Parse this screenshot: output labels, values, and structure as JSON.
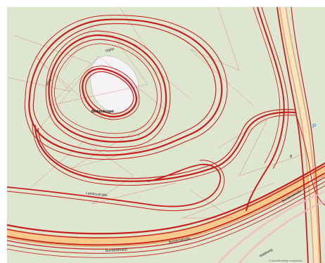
{
  "map": {
    "labels": {
      "summit_top": "Gipfel",
      "summit_name": "Birkenkogel",
      "left_path": "Weg",
      "road_upper": "Landesstraße",
      "road_lower_1": "Bundesstraße",
      "road_lower_2": "Bundesstraße",
      "road_lower_3": "Bundesstraße",
      "road_right": "Waldweg",
      "parking": "P",
      "side_marker": "B",
      "attribution": "© OpenStreetMap contributors"
    },
    "colors": {
      "background": "#dfe6cf",
      "track": "#c81e1e",
      "road_fill": "#f7c98a",
      "road_edge": "#e0a866",
      "summit_fill": "#f6f3f6",
      "parking": "#4aa3e0"
    }
  }
}
